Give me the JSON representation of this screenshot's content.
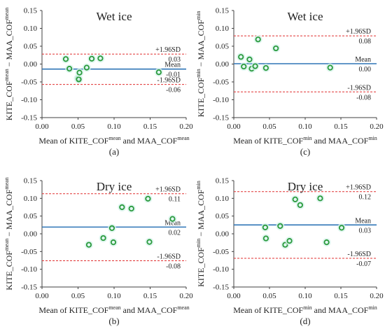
{
  "chart_data": [
    {
      "type": "scatter",
      "title": "Wet ice",
      "panel_label": "(a)",
      "ylabel": "KITE_COF",
      "ylabel_sup": "mean",
      "ylabel_mid": " − MAA_COF",
      "ylabel_sup2": "mean",
      "xlabel_pre": "Mean of KITE_COF",
      "xlabel_sup": "mean",
      "xlabel_mid": " and MAA_COF",
      "xlabel_sup2": "mean",
      "xlim": [
        0.0,
        0.2
      ],
      "ylim": [
        -0.15,
        0.15
      ],
      "xticks": [
        "0.00",
        "0.05",
        "0.10",
        "0.15",
        "0.20"
      ],
      "yticks": [
        "-0.15",
        "-0.10",
        "-0.05",
        "0.00",
        "0.05",
        "0.10",
        "0.15"
      ],
      "mean": -0.014,
      "upper": 0.028,
      "lower": -0.057,
      "mean_label": "Mean",
      "mean_value": "-0.01",
      "upper_label": "+1.96SD",
      "upper_value": "0.03",
      "lower_label": "-1.96SD",
      "lower_value": "-0.06",
      "points": [
        [
          0.033,
          0.014
        ],
        [
          0.038,
          -0.013
        ],
        [
          0.05,
          -0.04
        ],
        [
          0.051,
          -0.043
        ],
        [
          0.052,
          -0.024
        ],
        [
          0.062,
          -0.01
        ],
        [
          0.069,
          0.015
        ],
        [
          0.081,
          0.016
        ],
        [
          0.162,
          -0.023
        ]
      ]
    },
    {
      "type": "scatter",
      "title": "Wet ice",
      "panel_label": "(c)",
      "ylabel": "KITE_COF",
      "ylabel_sup": "min",
      "ylabel_mid": " − MAA_COF",
      "ylabel_sup2": "min",
      "xlabel_pre": "Mean of KITE_COF",
      "xlabel_sup": "min",
      "xlabel_mid": " and MAA_COF",
      "xlabel_sup2": "min",
      "xlim": [
        0.0,
        0.2
      ],
      "ylim": [
        -0.15,
        0.15
      ],
      "xticks": [
        "0.00",
        "0.05",
        "0.10",
        "0.15",
        "0.20"
      ],
      "yticks": [
        "-0.15",
        "-0.10",
        "-0.05",
        "0.00",
        "0.05",
        "0.10",
        "0.15"
      ],
      "mean": 0.001,
      "upper": 0.079,
      "lower": -0.078,
      "mean_label": "Mean",
      "mean_value": "0.00",
      "upper_label": "+1.96SD",
      "upper_value": "0.08",
      "lower_label": "-1.96SD",
      "lower_value": "-0.08",
      "points": [
        [
          0.01,
          0.02
        ],
        [
          0.014,
          -0.007
        ],
        [
          0.022,
          0.013
        ],
        [
          0.025,
          -0.013
        ],
        [
          0.03,
          -0.006
        ],
        [
          0.034,
          0.069
        ],
        [
          0.045,
          -0.011
        ],
        [
          0.059,
          0.044
        ],
        [
          0.135,
          -0.01
        ]
      ]
    },
    {
      "type": "scatter",
      "title": "Dry ice",
      "panel_label": "(b)",
      "ylabel": "KITE_COF",
      "ylabel_sup": "mean",
      "ylabel_mid": " − MAA_COF",
      "ylabel_sup2": "mean",
      "xlabel_pre": "Mean of KITE_COF",
      "xlabel_sup": "mean",
      "xlabel_mid": " and MAA_COF",
      "xlabel_sup2": "mean",
      "xlim": [
        0.0,
        0.2
      ],
      "ylim": [
        -0.15,
        0.15
      ],
      "xticks": [
        "0.00",
        "0.05",
        "0.10",
        "0.15",
        "0.20"
      ],
      "yticks": [
        "-0.15",
        "-0.10",
        "-0.05",
        "0.00",
        "0.05",
        "0.10",
        "0.15"
      ],
      "mean": 0.019,
      "upper": 0.113,
      "lower": -0.076,
      "mean_label": "Mean",
      "mean_value": "0.02",
      "upper_label": "+1.96SD",
      "upper_value": "0.11",
      "lower_label": "-1.96SD",
      "lower_value": "-0.08",
      "points": [
        [
          0.065,
          -0.031
        ],
        [
          0.085,
          -0.012
        ],
        [
          0.097,
          0.016
        ],
        [
          0.099,
          -0.024
        ],
        [
          0.111,
          0.075
        ],
        [
          0.124,
          0.071
        ],
        [
          0.147,
          0.099
        ],
        [
          0.149,
          -0.023
        ],
        [
          0.181,
          0.042
        ]
      ]
    },
    {
      "type": "scatter",
      "title": "Dry ice",
      "panel_label": "(d)",
      "ylabel": "KITE_COF",
      "ylabel_sup": "min",
      "ylabel_mid": " − MAA_COF",
      "ylabel_sup2": "min",
      "xlabel_pre": "Mean of KITE_COF",
      "xlabel_sup": "min",
      "xlabel_mid": " and MAA_COF",
      "xlabel_sup2": "min",
      "xlim": [
        0.0,
        0.2
      ],
      "ylim": [
        -0.15,
        0.15
      ],
      "xticks": [
        "0.00",
        "0.05",
        "0.10",
        "0.15",
        "0.20"
      ],
      "yticks": [
        "-0.15",
        "-0.10",
        "-0.05",
        "0.00",
        "0.05",
        "0.10",
        "0.15"
      ],
      "mean": 0.025,
      "upper": 0.119,
      "lower": -0.069,
      "mean_label": "Mean",
      "mean_value": "0.03",
      "upper_label": "+1.96SD",
      "upper_value": "0.12",
      "lower_label": "-1.96SD",
      "lower_value": "-0.07",
      "points": [
        [
          0.044,
          0.018
        ],
        [
          0.045,
          -0.013
        ],
        [
          0.065,
          0.022
        ],
        [
          0.072,
          -0.031
        ],
        [
          0.078,
          -0.02
        ],
        [
          0.086,
          0.097
        ],
        [
          0.093,
          0.081
        ],
        [
          0.121,
          0.1
        ],
        [
          0.13,
          -0.024
        ],
        [
          0.151,
          0.017
        ]
      ]
    }
  ],
  "colors": {
    "mean_line": "#2e75b6",
    "limit_line": "#e03030",
    "marker_stroke": "#2a9a3c",
    "marker_halo": "#d8f4ec",
    "axis": "#404040",
    "text": "#222222"
  }
}
